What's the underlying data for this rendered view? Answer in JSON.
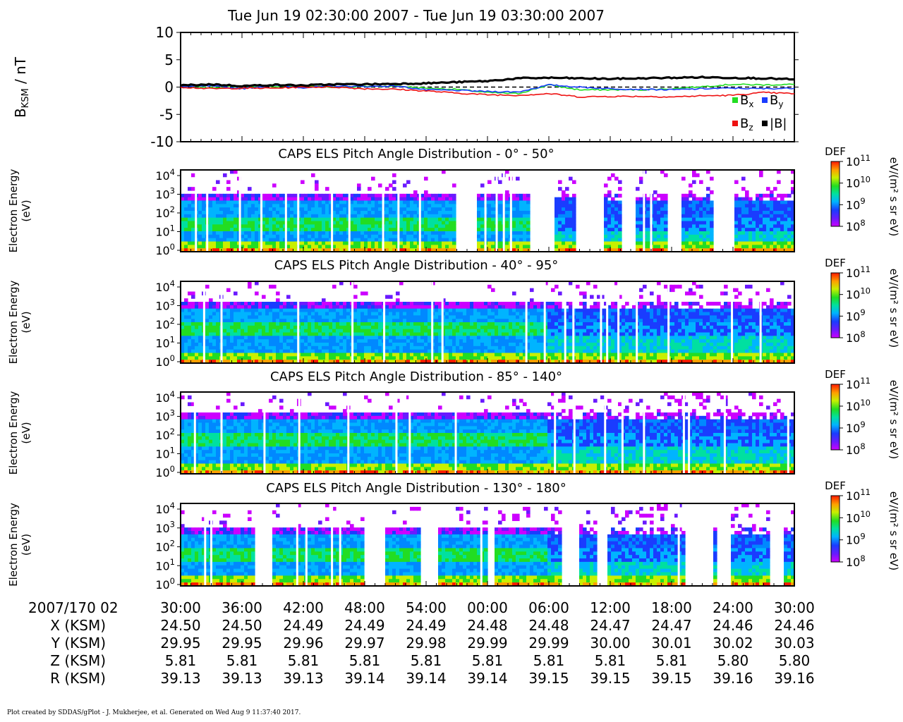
{
  "title": "Tue Jun 19 02:30:00 2007 - Tue Jun 19 03:30:00 2007",
  "footer": "Plot created by SDDAS/gPlot - J. Mukherjee, et al.  Generated on Wed Aug 9 11:37:40 2017.",
  "colors": {
    "bx": "#22dd22",
    "by": "#1a3cff",
    "bz": "#ee1111",
    "bmag": "#000000",
    "zero_line": "#000000"
  },
  "chart_data": [
    {
      "type": "line",
      "ylabel_main": "B",
      "ylabel_sub": "KSM",
      "ylabel_unit": " / nT",
      "ylim": [
        -10,
        10
      ],
      "yticks": [
        "10",
        "5",
        "0",
        "-5",
        "-10"
      ],
      "ytick_values": [
        10,
        5,
        0,
        -5,
        -10
      ],
      "x_minutes": [
        0,
        3,
        6,
        9,
        12,
        15,
        18,
        21,
        24,
        27,
        30,
        33,
        36,
        39,
        42,
        45,
        48,
        51,
        54,
        57,
        60
      ],
      "series": [
        {
          "name": "x",
          "color_key": "bx",
          "values": [
            0.2,
            -0.1,
            0.2,
            0.1,
            0.2,
            0.0,
            0.1,
            0.2,
            -0.2,
            -0.4,
            -1.0,
            -1.2,
            0.4,
            -0.5,
            -0.5,
            -0.5,
            -0.3,
            0.1,
            0.5,
            0.4,
            0.5
          ]
        },
        {
          "name": "y",
          "color_key": "by",
          "values": [
            0.1,
            0.2,
            -0.3,
            0.3,
            -0.1,
            0.2,
            0.1,
            0.2,
            -0.5,
            -0.6,
            -0.8,
            -0.9,
            0.4,
            0.0,
            -0.3,
            -0.4,
            -0.5,
            -0.3,
            -0.2,
            -0.3,
            -0.2
          ]
        },
        {
          "name": "z",
          "color_key": "bz",
          "values": [
            0.0,
            -0.3,
            -0.2,
            -0.2,
            0.0,
            0.0,
            -0.3,
            -0.4,
            -0.7,
            -1.1,
            -1.4,
            -1.5,
            -1.2,
            -1.8,
            -1.7,
            -1.7,
            -1.8,
            -1.6,
            -1.5,
            -1.0,
            -1.2
          ]
        },
        {
          "name": "|B|",
          "color_key": "bmag",
          "values": [
            0.3,
            0.5,
            0.2,
            0.4,
            0.3,
            0.5,
            0.5,
            0.6,
            0.7,
            0.9,
            1.1,
            1.6,
            1.7,
            1.6,
            1.5,
            1.6,
            1.7,
            1.8,
            1.7,
            1.6,
            1.4
          ]
        }
      ],
      "legend": [
        {
          "main": "B",
          "sub": "x",
          "color_key": "bx"
        },
        {
          "main": "B",
          "sub": "y",
          "color_key": "by"
        },
        {
          "main": "B",
          "sub": "z",
          "color_key": "bz"
        },
        {
          "main": "|B|",
          "sub": "",
          "color_key": "bmag"
        }
      ],
      "legend_position": "bottom-right"
    },
    {
      "type": "heatmap",
      "title": "CAPS ELS Pitch Angle Distribution - 0° - 50°",
      "ylabel": [
        "Electron Energy",
        "(eV)"
      ],
      "yscale": "log",
      "yticks": [
        {
          "base": "10",
          "exp": "4"
        },
        {
          "base": "10",
          "exp": "3"
        },
        {
          "base": "10",
          "exp": "2"
        },
        {
          "base": "10",
          "exp": "1"
        },
        {
          "base": "10",
          "exp": "0"
        }
      ],
      "colorbar": {
        "label": "DEF",
        "unit": "eV/(m² s sr eV)",
        "ticks": [
          {
            "base": "10",
            "exp": "11"
          },
          {
            "base": "10",
            "exp": "10"
          },
          {
            "base": "10",
            "exp": "9"
          },
          {
            "base": "10",
            "exp": "8"
          }
        ]
      },
      "data_gaps_minutes": [
        [
          27.0,
          28.8
        ],
        [
          34.2,
          36.5
        ],
        [
          38.5,
          41.5
        ],
        [
          43.2,
          44.6
        ],
        [
          47.5,
          49.0
        ],
        [
          52.0,
          54.2
        ]
      ],
      "thin_gaps_minutes": [
        1.5,
        2.6,
        5.8,
        7.9,
        10.3,
        11.5,
        14.8,
        16.5,
        19.8,
        21.3,
        23.4,
        29.8,
        30.9,
        31.6,
        32.3,
        40.6,
        45.3,
        46.0
      ]
    },
    {
      "type": "heatmap",
      "title": "CAPS ELS Pitch Angle Distribution - 40° - 95°",
      "ylabel": [
        "Electron Energy",
        "(eV)"
      ],
      "yscale": "log",
      "yticks": [
        {
          "base": "10",
          "exp": "4"
        },
        {
          "base": "10",
          "exp": "3"
        },
        {
          "base": "10",
          "exp": "2"
        },
        {
          "base": "10",
          "exp": "1"
        },
        {
          "base": "10",
          "exp": "0"
        }
      ],
      "colorbar": {
        "label": "DEF",
        "unit": "eV/(m² s sr eV)",
        "ticks": [
          {
            "base": "10",
            "exp": "11"
          },
          {
            "base": "10",
            "exp": "10"
          },
          {
            "base": "10",
            "exp": "9"
          },
          {
            "base": "10",
            "exp": "8"
          }
        ]
      },
      "data_gaps_minutes": [],
      "thin_gaps_minutes": [
        2.3,
        4.0,
        11.5,
        16.8,
        19.9,
        24.6,
        25.6,
        33.8,
        35.6,
        37.6,
        38.4,
        41.1,
        41.7,
        42.8,
        44.6,
        47.7,
        53.9,
        56.7
      ]
    },
    {
      "type": "heatmap",
      "title": "CAPS ELS Pitch Angle Distribution - 85° - 140°",
      "ylabel": [
        "Electron Energy",
        "(eV)"
      ],
      "yscale": "log",
      "yticks": [
        {
          "base": "10",
          "exp": "4"
        },
        {
          "base": "10",
          "exp": "3"
        },
        {
          "base": "10",
          "exp": "2"
        },
        {
          "base": "10",
          "exp": "1"
        },
        {
          "base": "10",
          "exp": "0"
        }
      ],
      "colorbar": {
        "label": "DEF",
        "unit": "eV/(m² s sr eV)",
        "ticks": [
          {
            "base": "10",
            "exp": "11"
          },
          {
            "base": "10",
            "exp": "10"
          },
          {
            "base": "10",
            "exp": "9"
          },
          {
            "base": "10",
            "exp": "8"
          }
        ]
      },
      "data_gaps_minutes": [],
      "thin_gaps_minutes": [
        1.4,
        4.0,
        8.2,
        11.6,
        16.4,
        21.1,
        22.4,
        26.9,
        36.6,
        38.5,
        41.5,
        43.2,
        45.3,
        49.2,
        49.7,
        53.2,
        59.4
      ]
    },
    {
      "type": "heatmap",
      "title": "CAPS ELS Pitch Angle Distribution - 130° - 180°",
      "ylabel": [
        "Electron Energy",
        "(eV)"
      ],
      "yscale": "log",
      "yticks": [
        {
          "base": "10",
          "exp": "4"
        },
        {
          "base": "10",
          "exp": "3"
        },
        {
          "base": "10",
          "exp": "2"
        },
        {
          "base": "10",
          "exp": "1"
        },
        {
          "base": "10",
          "exp": "0"
        }
      ],
      "colorbar": {
        "label": "DEF",
        "unit": "eV/(m² s sr eV)",
        "ticks": [
          {
            "base": "10",
            "exp": "11"
          },
          {
            "base": "10",
            "exp": "10"
          },
          {
            "base": "10",
            "exp": "9"
          },
          {
            "base": "10",
            "exp": "8"
          }
        ]
      },
      "data_gaps_minutes": [
        [
          7.2,
          9.1
        ],
        [
          18.1,
          20.1
        ],
        [
          23.3,
          25.2
        ],
        [
          30.1,
          30.8
        ],
        [
          37.3,
          38.9
        ],
        [
          40.8,
          41.8
        ],
        [
          49.4,
          52.0
        ],
        [
          52.4,
          53.7
        ],
        [
          57.7,
          58.8
        ]
      ],
      "thin_gaps_minutes": [
        2.4,
        3.0,
        11.4,
        12.3,
        14.8,
        15.6,
        29.4,
        48.7
      ]
    }
  ],
  "x_axis": {
    "label": "2007/170 02",
    "tick_minutes": [
      0,
      6,
      12,
      18,
      24,
      30,
      36,
      42,
      48,
      54,
      60
    ],
    "ticks": [
      "30:00",
      "36:00",
      "42:00",
      "48:00",
      "54:00",
      "00:00",
      "06:00",
      "12:00",
      "18:00",
      "24:00",
      "30:00"
    ]
  },
  "ephemeris": [
    {
      "label": "X (KSM)",
      "values": [
        "24.50",
        "24.50",
        "24.49",
        "24.49",
        "24.49",
        "24.48",
        "24.48",
        "24.47",
        "24.47",
        "24.46",
        "24.46"
      ]
    },
    {
      "label": "Y (KSM)",
      "values": [
        "29.95",
        "29.95",
        "29.96",
        "29.97",
        "29.98",
        "29.99",
        "29.99",
        "30.00",
        "30.01",
        "30.02",
        "30.03"
      ]
    },
    {
      "label": "Z (KSM)",
      "values": [
        "5.81",
        "5.81",
        "5.81",
        "5.81",
        "5.81",
        "5.81",
        "5.81",
        "5.81",
        "5.81",
        "5.80",
        "5.80"
      ]
    },
    {
      "label": "R (KSM)",
      "values": [
        "39.13",
        "39.13",
        "39.13",
        "39.14",
        "39.14",
        "39.14",
        "39.15",
        "39.15",
        "39.15",
        "39.16",
        "39.16"
      ]
    }
  ]
}
